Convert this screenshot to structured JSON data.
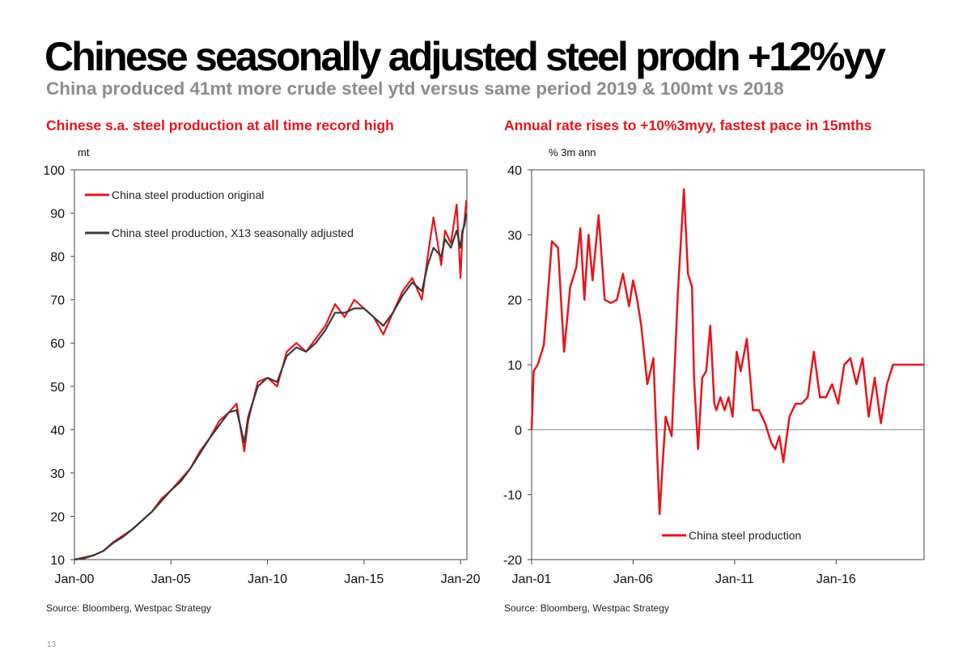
{
  "page": {
    "title": "Chinese seasonally adjusted steel prodn  +12%yy",
    "subtitle": "China produced 41mt more crude steel ytd versus same period 2019 & 100mt vs 2018",
    "page_number": "13"
  },
  "colors": {
    "red": "#e8141c",
    "dark": "#3a3a3a",
    "title_red": "#e8141c",
    "subtitle_grey": "#8c8c8c"
  },
  "chart_data": [
    {
      "type": "line",
      "title": "Chinese s.a. steel production at all time record high",
      "ylabel": "mt",
      "source": "Source: Bloomberg, Westpac Strategy",
      "ylim": [
        10,
        100
      ],
      "xlim": [
        2000.0,
        2020.33
      ],
      "yticks": [
        "10",
        "20",
        "30",
        "40",
        "50",
        "60",
        "70",
        "80",
        "90",
        "100"
      ],
      "xticks": [
        {
          "x": 2000.0,
          "label": "Jan-00"
        },
        {
          "x": 2005.0,
          "label": "Jan-05"
        },
        {
          "x": 2010.0,
          "label": "Jan-10"
        },
        {
          "x": 2015.0,
          "label": "Jan-15"
        },
        {
          "x": 2020.0,
          "label": "Jan-20"
        }
      ],
      "legend": "top-left",
      "series": [
        {
          "name": "China steel production original",
          "color": "#e8141c",
          "x": [
            2000.0,
            2000.5,
            2001.0,
            2001.5,
            2002.0,
            2002.5,
            2003.0,
            2003.5,
            2004.0,
            2004.5,
            2005.0,
            2005.5,
            2006.0,
            2006.5,
            2007.0,
            2007.5,
            2008.0,
            2008.4,
            2008.8,
            2009.0,
            2009.5,
            2010.0,
            2010.5,
            2011.0,
            2011.5,
            2012.0,
            2012.5,
            2013.0,
            2013.5,
            2014.0,
            2014.5,
            2015.0,
            2015.5,
            2016.0,
            2016.5,
            2017.0,
            2017.5,
            2018.0,
            2018.3,
            2018.6,
            2019.0,
            2019.2,
            2019.5,
            2019.8,
            2020.0,
            2020.1,
            2020.2,
            2020.3
          ],
          "y": [
            10,
            10.5,
            11,
            12,
            14,
            15.5,
            17,
            19,
            21,
            24,
            26,
            28.5,
            31,
            35,
            38,
            42,
            44,
            46,
            35,
            42,
            51,
            52,
            50,
            58,
            60,
            58,
            61,
            64,
            69,
            66,
            70,
            68,
            66,
            62,
            67,
            72,
            75,
            70,
            80,
            89,
            78,
            86,
            83,
            92,
            75,
            85,
            88,
            93
          ]
        },
        {
          "name": "China steel production, X13 seasonally adjusted",
          "color": "#3a3a3a",
          "x": [
            2000.0,
            2000.5,
            2001.0,
            2001.5,
            2002.0,
            2002.5,
            2003.0,
            2003.5,
            2004.0,
            2004.5,
            2005.0,
            2005.5,
            2006.0,
            2006.5,
            2007.0,
            2007.5,
            2008.0,
            2008.4,
            2008.8,
            2009.0,
            2009.5,
            2010.0,
            2010.5,
            2011.0,
            2011.5,
            2012.0,
            2012.5,
            2013.0,
            2013.5,
            2014.0,
            2014.5,
            2015.0,
            2015.5,
            2016.0,
            2016.5,
            2017.0,
            2017.5,
            2018.0,
            2018.3,
            2018.6,
            2019.0,
            2019.2,
            2019.5,
            2019.8,
            2020.0,
            2020.1,
            2020.2,
            2020.3
          ],
          "y": [
            10,
            10.3,
            11,
            12,
            13.8,
            15.2,
            17,
            19,
            21,
            23.5,
            26,
            28,
            31,
            34.5,
            38,
            41,
            44,
            44.5,
            37,
            43,
            50,
            52,
            51,
            57,
            59,
            58,
            60,
            63,
            67,
            67,
            68,
            68,
            66,
            64,
            67,
            71,
            74,
            72,
            78,
            82,
            80,
            84,
            82,
            86,
            82,
            86,
            87,
            90
          ]
        }
      ]
    },
    {
      "type": "line",
      "title": "Annual rate rises to +10%3myy, fastest pace in 15mths",
      "ylabel": "% 3m ann",
      "source": "Source: Bloomberg, Westpac Strategy",
      "ylim": [
        -20,
        40
      ],
      "xlim": [
        2001.0,
        2020.33
      ],
      "yticks": [
        "-20",
        "-10",
        "0",
        "10",
        "20",
        "30",
        "40"
      ],
      "xticks": [
        {
          "x": 2001.0,
          "label": "Jan-01"
        },
        {
          "x": 2006.0,
          "label": "Jan-06"
        },
        {
          "x": 2011.0,
          "label": "Jan-11"
        },
        {
          "x": 2016.0,
          "label": "Jan-16"
        }
      ],
      "legend": "bottom-right",
      "series": [
        {
          "name": "China steel production",
          "color": "#e8141c",
          "x": [
            2001.0,
            2001.1,
            2001.3,
            2001.6,
            2002.0,
            2002.3,
            2002.6,
            2002.9,
            2003.2,
            2003.4,
            2003.6,
            2003.8,
            2004.0,
            2004.3,
            2004.6,
            2004.9,
            2005.2,
            2005.5,
            2005.8,
            2006.0,
            2006.2,
            2006.4,
            2006.7,
            2007.0,
            2007.3,
            2007.6,
            2007.9,
            2008.2,
            2008.5,
            2008.7,
            2008.9,
            2009.0,
            2009.2,
            2009.4,
            2009.6,
            2009.8,
            2010.0,
            2010.1,
            2010.3,
            2010.5,
            2010.7,
            2010.9,
            2011.1,
            2011.3,
            2011.6,
            2011.9,
            2012.2,
            2012.5,
            2012.8,
            2013.0,
            2013.2,
            2013.4,
            2013.7,
            2014.0,
            2014.3,
            2014.6,
            2014.9,
            2015.2,
            2015.5,
            2015.8,
            2016.1,
            2016.4,
            2016.7,
            2017.0,
            2017.3,
            2017.6,
            2017.9,
            2018.2,
            2018.5,
            2018.8,
            2019.1,
            2019.4,
            2019.7,
            2019.9,
            2020.1,
            2020.33
          ],
          "y": [
            0,
            9,
            10,
            13,
            29,
            28,
            12,
            22,
            25,
            31,
            20,
            30,
            23,
            33,
            20,
            19.5,
            20,
            24,
            19,
            23,
            20,
            16,
            7,
            11,
            -13,
            2,
            -1,
            21,
            37,
            24,
            22,
            8,
            -3,
            8,
            9,
            16,
            4,
            3,
            5,
            3,
            5,
            2,
            12,
            9,
            14,
            3,
            3,
            1,
            -2,
            -3,
            -1,
            -5,
            2,
            4,
            4,
            5,
            12,
            5,
            5,
            7,
            4,
            10,
            11,
            7,
            11,
            2,
            8,
            1,
            7,
            10,
            10,
            10,
            10,
            10,
            10,
            10
          ]
        }
      ]
    }
  ]
}
